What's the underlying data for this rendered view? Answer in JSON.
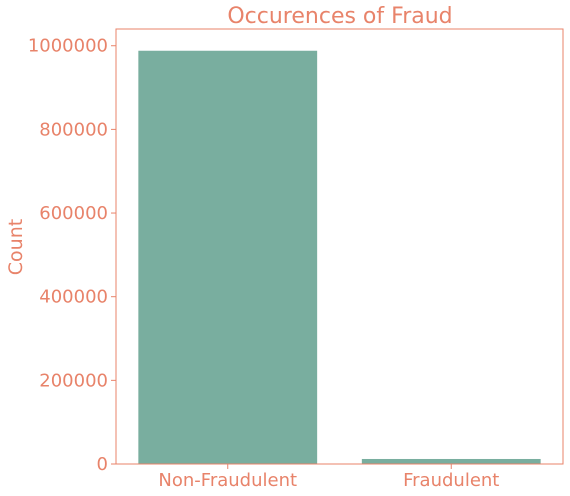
{
  "chart_data": {
    "type": "bar",
    "title": "Occurences of Fraud",
    "xlabel": "",
    "ylabel": "Count",
    "categories": [
      "Non-Fraudulent",
      "Fraudulent"
    ],
    "values": [
      988000,
      12000
    ],
    "ylim": [
      0,
      1040000
    ],
    "yticks": [
      0,
      200000,
      400000,
      600000,
      800000,
      1000000
    ],
    "ytick_labels": [
      "0",
      "200000",
      "400000",
      "600000",
      "800000",
      "1000000"
    ],
    "grid": false,
    "legend": "none"
  },
  "colors": {
    "bar": "#79ae9f",
    "text": "#e8836a",
    "axis": "#e8836a",
    "background": "#ffffff"
  }
}
